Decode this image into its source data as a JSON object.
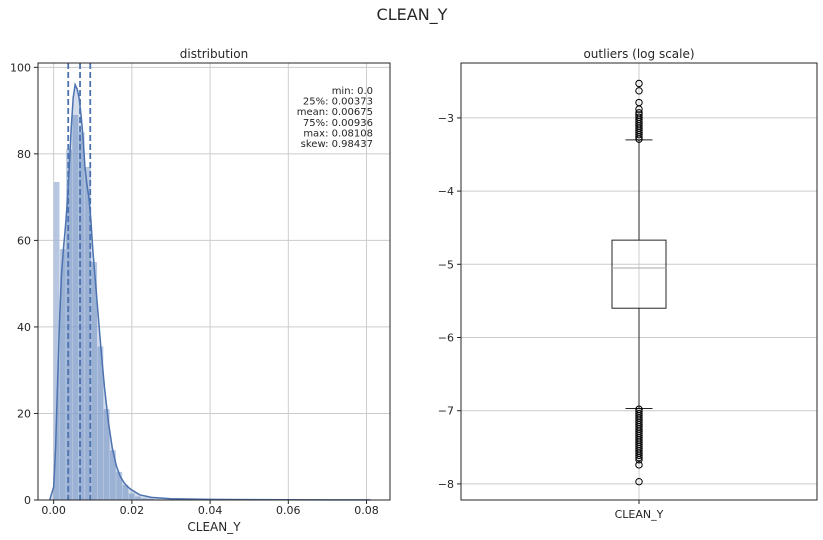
{
  "suptitle": "CLEAN_Y",
  "chart_data": [
    {
      "type": "histogram",
      "title": "distribution",
      "xlabel": "CLEAN_Y",
      "ylabel": "",
      "xlim": [
        -0.004,
        0.086
      ],
      "ylim": [
        0,
        101
      ],
      "xticks": [
        0.0,
        0.02,
        0.04,
        0.06,
        0.08
      ],
      "xtick_labels": [
        "0.00",
        "0.02",
        "0.04",
        "0.06",
        "0.08"
      ],
      "yticks": [
        0,
        20,
        40,
        60,
        80,
        100
      ],
      "ytick_labels": [
        "0",
        "20",
        "40",
        "60",
        "80",
        "100"
      ],
      "grid": true,
      "bins": [
        {
          "x0": 0.0,
          "x1": 0.0016,
          "value": 73.5
        },
        {
          "x0": 0.0016,
          "x1": 0.0032,
          "value": 58
        },
        {
          "x0": 0.0032,
          "x1": 0.0048,
          "value": 81
        },
        {
          "x0": 0.0048,
          "x1": 0.0064,
          "value": 89
        },
        {
          "x0": 0.0064,
          "x1": 0.008,
          "value": 85
        },
        {
          "x0": 0.008,
          "x1": 0.0096,
          "value": 77
        },
        {
          "x0": 0.0096,
          "x1": 0.0112,
          "value": 55
        },
        {
          "x0": 0.0112,
          "x1": 0.0128,
          "value": 35.5
        },
        {
          "x0": 0.0128,
          "x1": 0.0144,
          "value": 21
        },
        {
          "x0": 0.0144,
          "x1": 0.016,
          "value": 11.5
        },
        {
          "x0": 0.016,
          "x1": 0.0176,
          "value": 6.5
        },
        {
          "x0": 0.0176,
          "x1": 0.0192,
          "value": 3.5
        },
        {
          "x0": 0.0192,
          "x1": 0.0208,
          "value": 1.5
        },
        {
          "x0": 0.0208,
          "x1": 0.0224,
          "value": 0.8
        },
        {
          "x0": 0.0224,
          "x1": 0.024,
          "value": 0.4
        },
        {
          "x0": 0.024,
          "x1": 0.0256,
          "value": 0.3
        }
      ],
      "kde": {
        "x": [
          -0.001,
          0.0,
          0.0005,
          0.001,
          0.0015,
          0.002,
          0.0025,
          0.003,
          0.0035,
          0.004,
          0.0045,
          0.005,
          0.0055,
          0.006,
          0.0065,
          0.007,
          0.0075,
          0.008,
          0.0085,
          0.009,
          0.0095,
          0.01,
          0.011,
          0.012,
          0.013,
          0.014,
          0.015,
          0.016,
          0.017,
          0.018,
          0.019,
          0.02,
          0.022,
          0.025,
          0.03,
          0.04,
          0.05,
          0.06,
          0.07,
          0.081
        ],
        "y": [
          0,
          3,
          12,
          27,
          41,
          52,
          58,
          63,
          69,
          77,
          86,
          93,
          96,
          95,
          93,
          89,
          84,
          77,
          73,
          70,
          65,
          58,
          47,
          36,
          26,
          18,
          12,
          8,
          5.5,
          4,
          3,
          2.3,
          1.2,
          0.6,
          0.3,
          0.15,
          0.1,
          0.06,
          0.04,
          0.02
        ]
      },
      "vlines": [
        0.00373,
        0.00675,
        0.00936
      ],
      "stats_text": [
        "min: 0.0",
        "25%: 0.00373",
        "mean: 0.00675",
        "75%: 0.00936",
        "max: 0.08108",
        "skew: 0.98437"
      ],
      "colors": {
        "bars": "#9fb4d8",
        "kde": "#4c72b0",
        "vlines": "#4c72b0"
      }
    },
    {
      "type": "box",
      "title": "outliers (log scale)",
      "xlabel": "",
      "category": "CLEAN_Y",
      "ylim": [
        -8.22,
        -2.25
      ],
      "yticks": [
        -3,
        -4,
        -5,
        -6,
        -7,
        -8
      ],
      "ytick_labels": [
        "−3",
        "−4",
        "−5",
        "−6",
        "−7",
        "−8"
      ],
      "grid": true,
      "q1": -5.6,
      "median": -5.05,
      "q3": -4.67,
      "whisker_low": -6.97,
      "whisker_high": -3.3,
      "outliers_high": [
        -2.53,
        -2.63,
        -2.79,
        -2.88,
        -2.93,
        -2.96,
        -2.99,
        -3.02,
        -3.05,
        -3.08,
        -3.11,
        -3.14,
        -3.17,
        -3.2,
        -3.23,
        -3.26,
        -3.29
      ],
      "outliers_low": [
        -6.98,
        -7.01,
        -7.04,
        -7.07,
        -7.1,
        -7.13,
        -7.16,
        -7.19,
        -7.22,
        -7.25,
        -7.28,
        -7.31,
        -7.34,
        -7.37,
        -7.4,
        -7.43,
        -7.46,
        -7.49,
        -7.52,
        -7.55,
        -7.58,
        -7.61,
        -7.64,
        -7.67,
        -7.74,
        -7.97
      ]
    }
  ]
}
